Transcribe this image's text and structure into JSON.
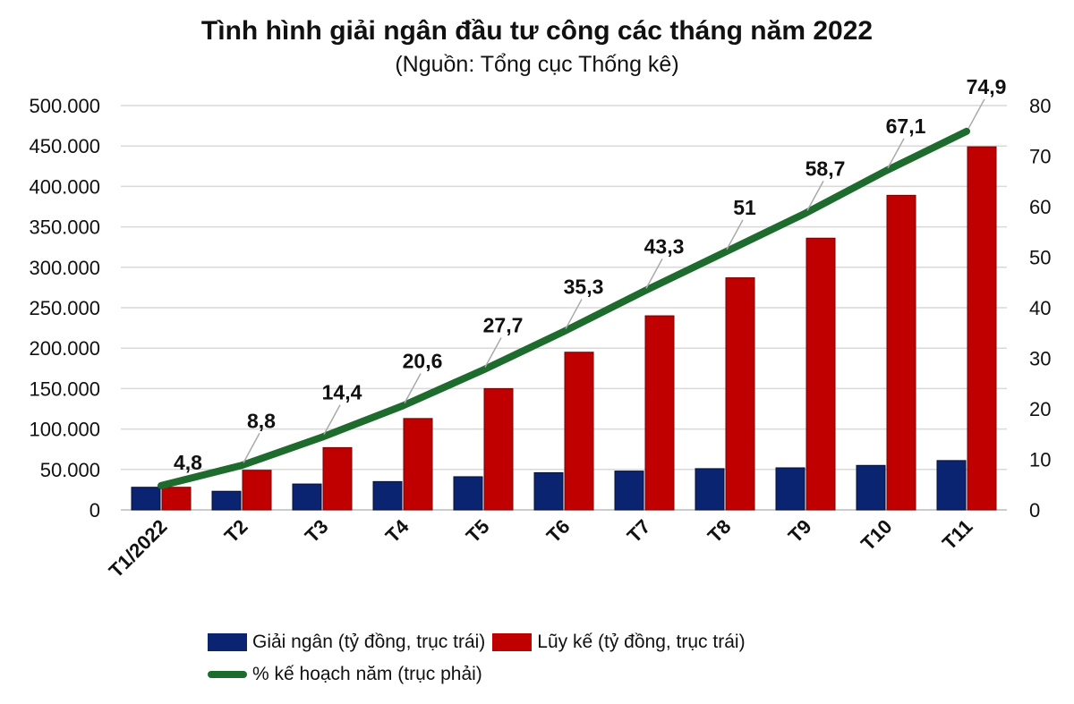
{
  "chart_data": {
    "type": "bar",
    "title": "Tình hình giải ngân đầu tư công các tháng năm 2022",
    "subtitle": "(Nguồn: Tổng cục Thống kê)",
    "categories": [
      "T1/2022",
      "T2",
      "T3",
      "T4",
      "T5",
      "T6",
      "T7",
      "T8",
      "T9",
      "T10",
      "T11"
    ],
    "series": [
      {
        "name": "Giải ngân (tỷ đồng, trục trái)",
        "type": "bar",
        "axis": "left",
        "color": "#0a2472",
        "values": [
          28000,
          23000,
          32000,
          35000,
          41000,
          46000,
          48000,
          51000,
          52000,
          55000,
          61000
        ]
      },
      {
        "name": "Lũy kế (tỷ đồng, trục trái)",
        "type": "bar",
        "axis": "left",
        "color": "#c00000",
        "values": [
          28000,
          49000,
          77000,
          113000,
          150000,
          195000,
          240000,
          287000,
          336000,
          389000,
          449000
        ]
      },
      {
        "name": "% kế hoạch năm (trục phải)",
        "type": "line",
        "axis": "right",
        "color": "#1e6b2e",
        "values": [
          4.8,
          8.8,
          14.4,
          20.6,
          27.7,
          35.3,
          43.3,
          51,
          58.7,
          67.1,
          74.9
        ],
        "labels": [
          "4,8",
          "8,8",
          "14,4",
          "20,6",
          "27,7",
          "35,3",
          "43,3",
          "51",
          "58,7",
          "67,1",
          "74,9"
        ]
      }
    ],
    "y_left": {
      "range": [
        0,
        500000
      ],
      "ticks": [
        "0",
        "50.000",
        "100.000",
        "150.000",
        "200.000",
        "250.000",
        "300.000",
        "350.000",
        "400.000",
        "450.000",
        "500.000"
      ]
    },
    "y_right": {
      "range": [
        0,
        80
      ],
      "ticks": [
        "0",
        "10",
        "20",
        "30",
        "40",
        "50",
        "60",
        "70",
        "80"
      ]
    },
    "grid": true,
    "legend": "bottom"
  }
}
